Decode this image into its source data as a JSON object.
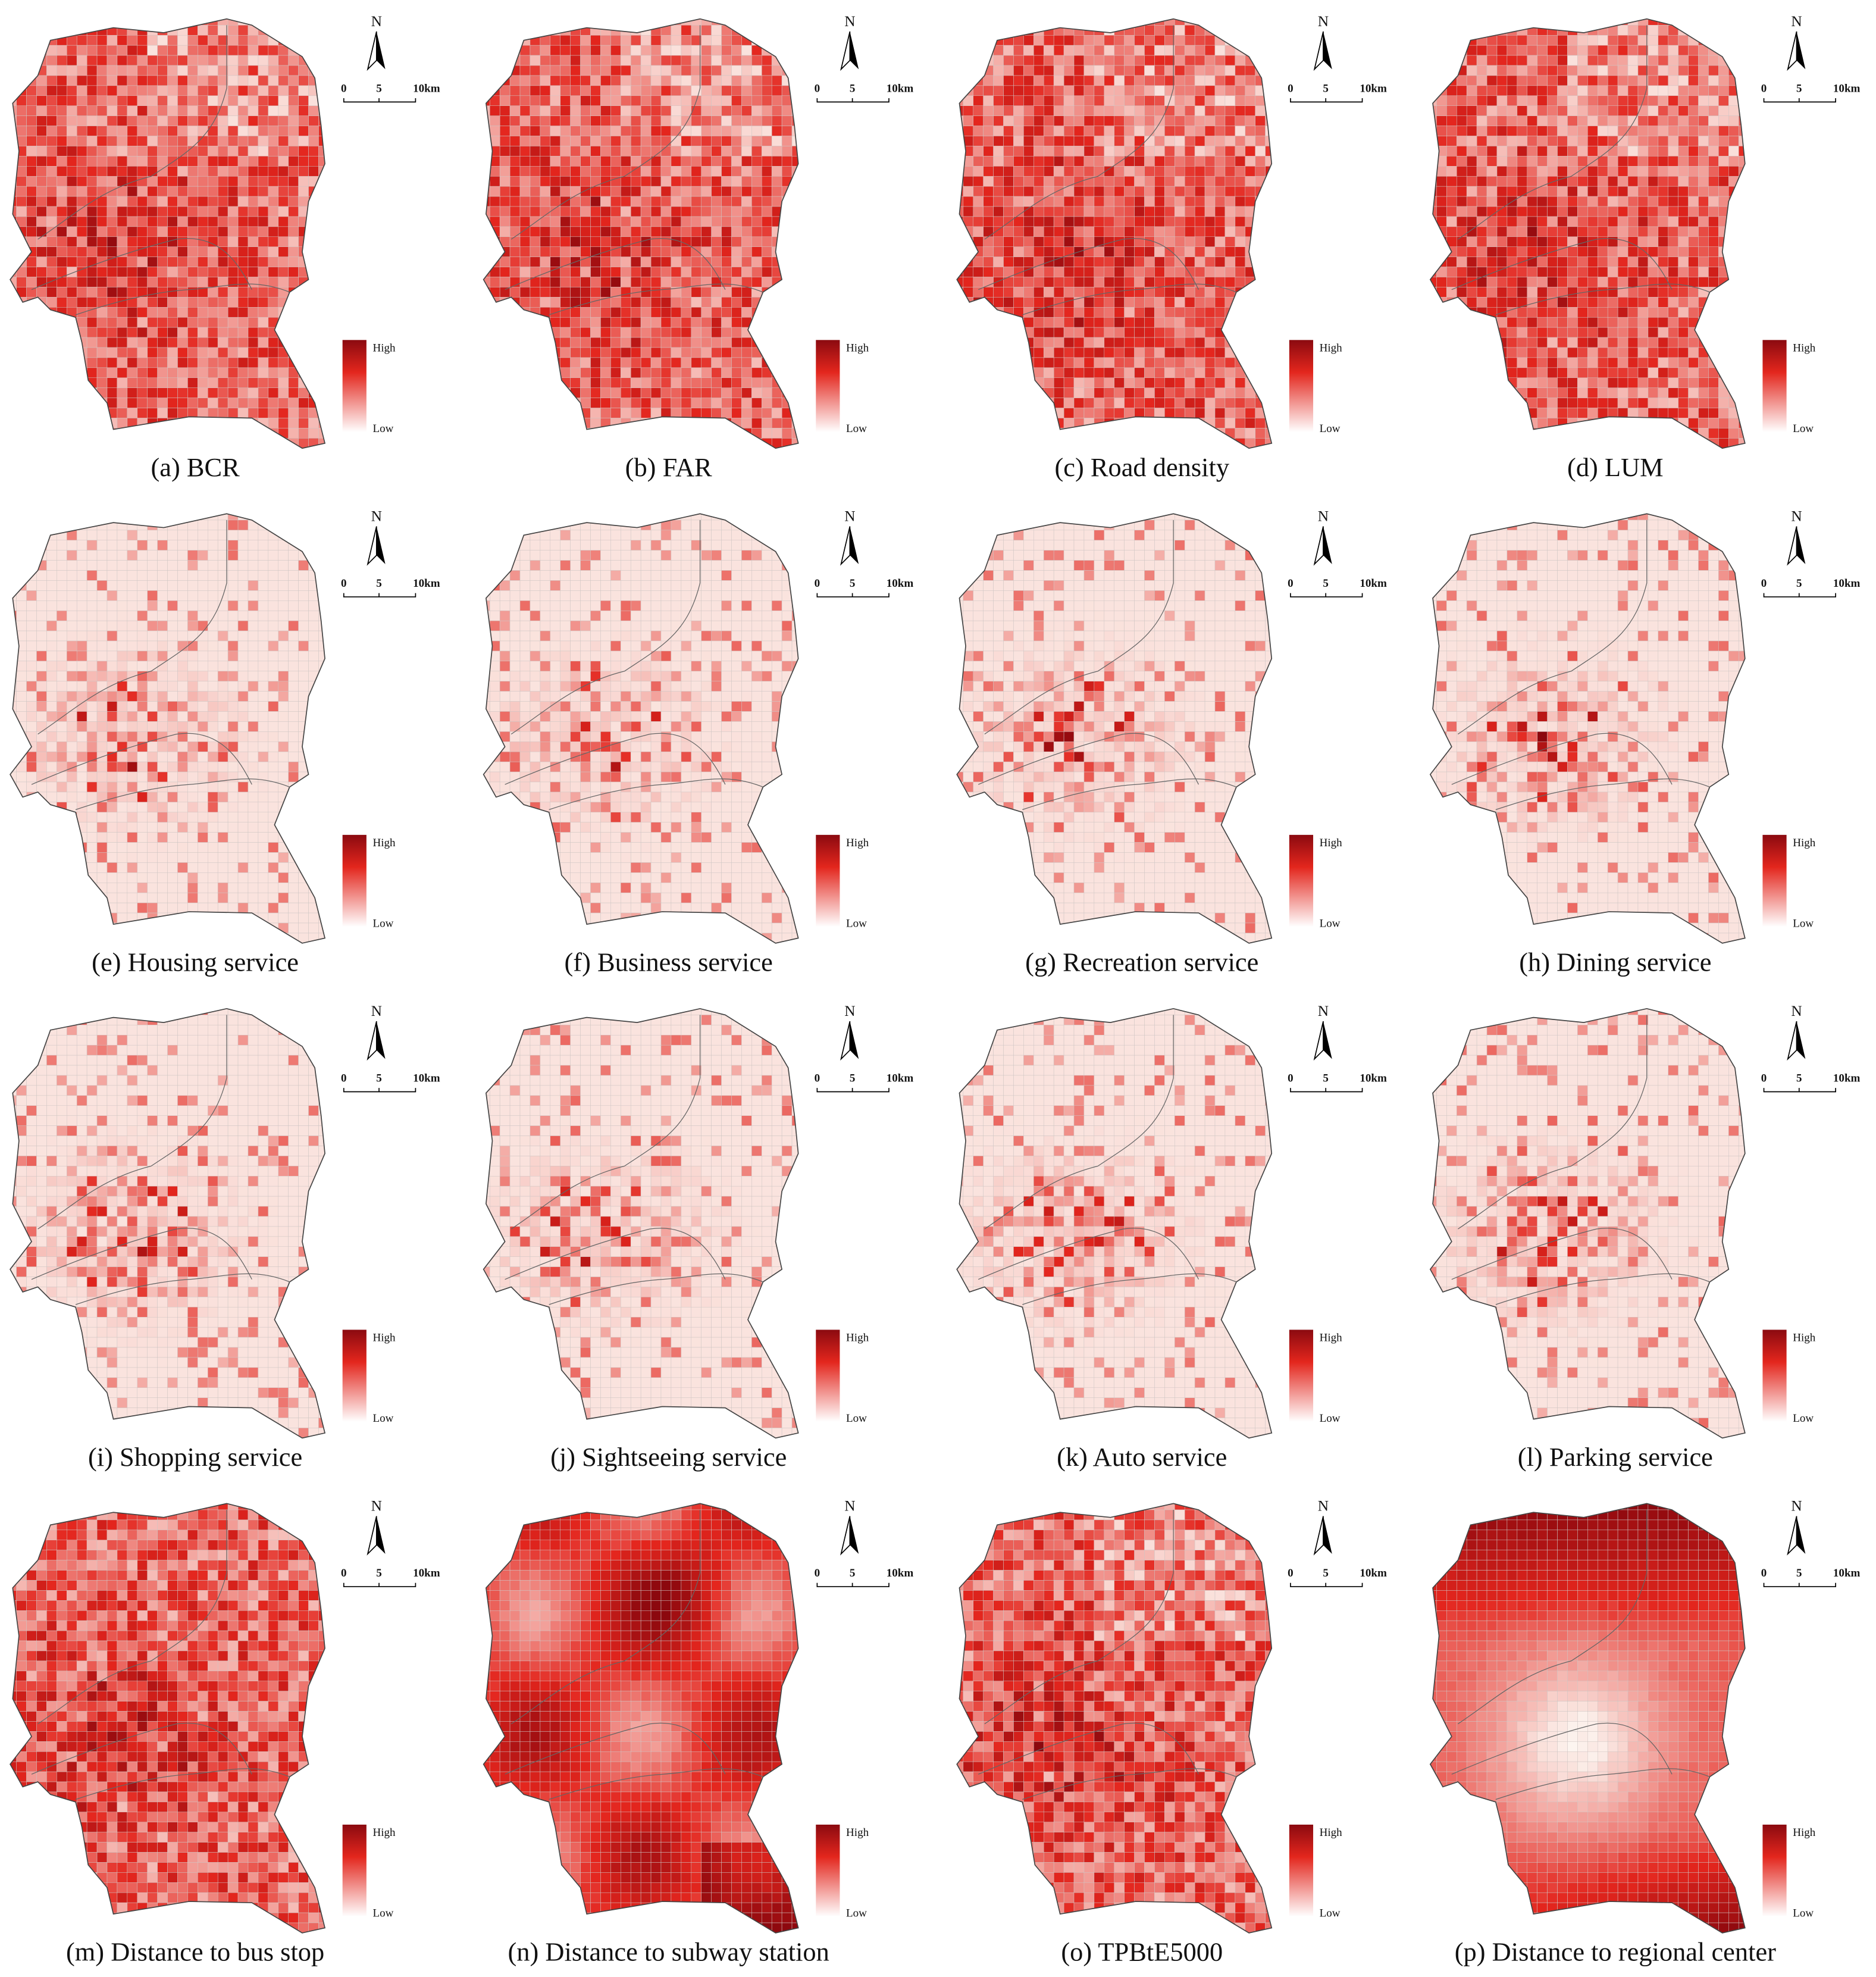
{
  "panels": [
    {
      "caption": "(a) BCR",
      "north": "N",
      "scale": [
        "0",
        "5",
        "10km"
      ],
      "legend": {
        "high": "High",
        "low": "Low"
      }
    },
    {
      "caption": "(b) FAR",
      "north": "N",
      "scale": [
        "0",
        "5",
        "10km"
      ],
      "legend": {
        "high": "High",
        "low": "Low"
      }
    },
    {
      "caption": "(c) Road density",
      "north": "N",
      "scale": [
        "0",
        "5",
        "10km"
      ],
      "legend": {
        "high": "High",
        "low": "Low"
      }
    },
    {
      "caption": "(d) LUM",
      "north": "N",
      "scale": [
        "0",
        "5",
        "10km"
      ],
      "legend": {
        "high": "High",
        "low": "Low"
      }
    },
    {
      "caption": "(e) Housing service",
      "north": "N",
      "scale": [
        "0",
        "5",
        "10km"
      ],
      "legend": {
        "high": "High",
        "low": "Low"
      }
    },
    {
      "caption": "(f) Business  service",
      "north": "N",
      "scale": [
        "0",
        "5",
        "10km"
      ],
      "legend": {
        "high": "High",
        "low": "Low"
      }
    },
    {
      "caption": "(g) Recreation service",
      "north": "N",
      "scale": [
        "0",
        "5",
        "10km"
      ],
      "legend": {
        "high": "High",
        "low": "Low"
      }
    },
    {
      "caption": "(h) Dining service",
      "north": "N",
      "scale": [
        "0",
        "5",
        "10km"
      ],
      "legend": {
        "high": "High",
        "low": "Low"
      }
    },
    {
      "caption": "(i) Shopping service",
      "north": "N",
      "scale": [
        "0",
        "5",
        "10km"
      ],
      "legend": {
        "high": "High",
        "low": "Low"
      }
    },
    {
      "caption": "(j) Sightseeing service",
      "north": "N",
      "scale": [
        "0",
        "5",
        "10km"
      ],
      "legend": {
        "high": "High",
        "low": "Low"
      }
    },
    {
      "caption": "(k) Auto service",
      "north": "N",
      "scale": [
        "0",
        "5",
        "10km"
      ],
      "legend": {
        "high": "High",
        "low": "Low"
      }
    },
    {
      "caption": "(l) Parking service",
      "north": "N",
      "scale": [
        "0",
        "5",
        "10km"
      ],
      "legend": {
        "high": "High",
        "low": "Low"
      }
    },
    {
      "caption": "(m) Distance to bus stop",
      "north": "N",
      "scale": [
        "0",
        "5",
        "10km"
      ],
      "legend": {
        "high": "High",
        "low": "Low"
      }
    },
    {
      "caption": "(n) Distance to subway station",
      "north": "N",
      "scale": [
        "0",
        "5",
        "10km"
      ],
      "legend": {
        "high": "High",
        "low": "Low"
      }
    },
    {
      "caption": "(o) TPBtE5000",
      "north": "N",
      "scale": [
        "0",
        "5",
        "10km"
      ],
      "legend": {
        "high": "High",
        "low": "Low"
      }
    },
    {
      "caption": "(p) Distance to regional center",
      "north": "N",
      "scale": [
        "0",
        "5",
        "10km"
      ],
      "legend": {
        "high": "High",
        "low": "Low"
      }
    }
  ]
}
